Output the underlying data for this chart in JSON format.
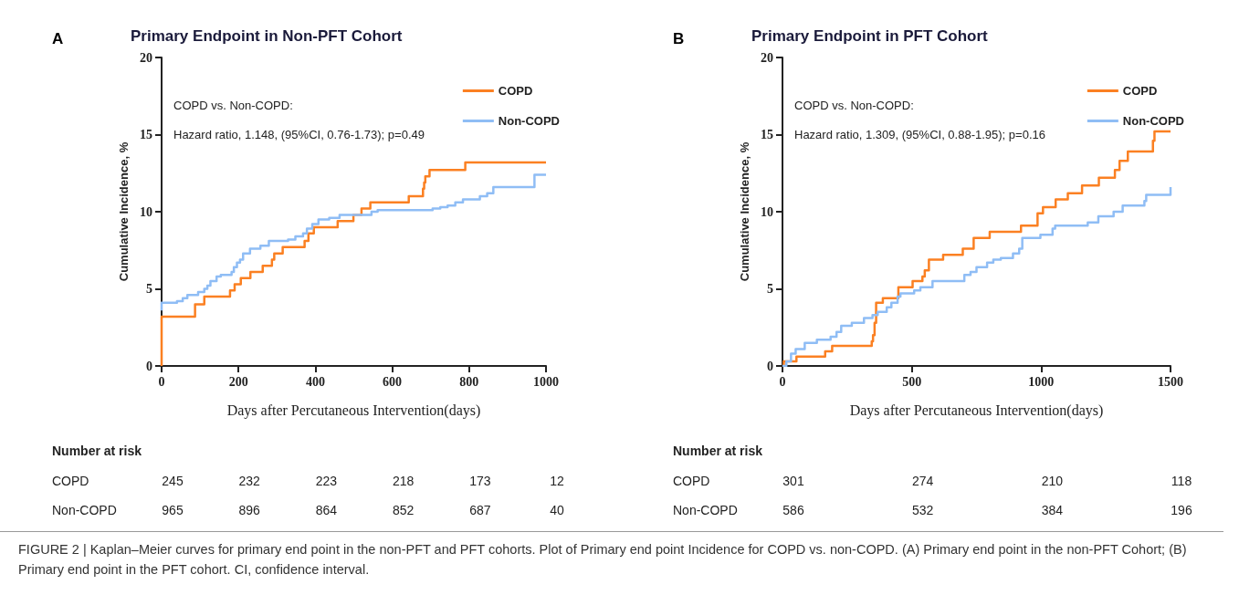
{
  "chart_data": [
    {
      "type": "step",
      "title": "Primary Endpoint in Non-PFT Cohort",
      "xlabel": "Days after Percutaneous Intervention(days)",
      "ylabel": "Cumulative Incidence, %",
      "xlim": [
        0,
        1000
      ],
      "xticks": [
        0,
        200,
        400,
        600,
        800,
        1000
      ],
      "ylim": [
        0,
        20
      ],
      "yticks": [
        0,
        5,
        10,
        15,
        20
      ],
      "legend": "top right",
      "marker": "none",
      "series": [
        {
          "name": "COPD",
          "color": "#fb8022",
          "x": [
            0,
            0,
            87,
            111,
            178,
            190,
            206,
            231,
            263,
            287,
            293,
            315,
            372,
            382,
            396,
            458,
            499,
            520,
            543,
            643,
            680,
            683,
            686,
            697,
            790,
            1000
          ],
          "values": [
            0,
            3.2,
            4.0,
            4.5,
            4.9,
            5.3,
            5.7,
            6.1,
            6.5,
            6.9,
            7.3,
            7.7,
            8.1,
            8.6,
            9.0,
            9.4,
            9.8,
            10.2,
            10.6,
            11.0,
            11.5,
            11.9,
            12.3,
            12.7,
            13.2,
            13.2
          ]
        },
        {
          "name": "Non-COPD",
          "color": "#8fbdf5",
          "x": [
            0,
            0,
            40,
            55,
            67,
            95,
            111,
            119,
            127,
            143,
            154,
            182,
            188,
            196,
            204,
            212,
            230,
            257,
            279,
            329,
            348,
            368,
            378,
            392,
            408,
            436,
            463,
            546,
            562,
            705,
            725,
            744,
            764,
            784,
            828,
            847,
            863,
            970,
            1000
          ],
          "values": [
            3.6,
            4.1,
            4.2,
            4.4,
            4.6,
            4.8,
            5.0,
            5.2,
            5.5,
            5.8,
            5.9,
            6.1,
            6.4,
            6.7,
            6.9,
            7.3,
            7.6,
            7.8,
            8.1,
            8.2,
            8.4,
            8.6,
            8.9,
            9.2,
            9.5,
            9.6,
            9.8,
            10.0,
            10.1,
            10.2,
            10.3,
            10.4,
            10.6,
            10.8,
            11.0,
            11.2,
            11.6,
            12.4,
            12.4
          ]
        }
      ],
      "annotations": [
        "A",
        "COPD vs. Non-COPD:",
        "Hazard ratio, 1.148, (95%CI, 0.76-1.73); p=0.49",
        "Number at risk",
        "COPD",
        "245",
        "232",
        "223",
        "218",
        "173",
        "12",
        "Non-COPD",
        "965",
        "896",
        "864",
        "852",
        "687",
        "40"
      ]
    },
    {
      "type": "step",
      "title": "Primary Endpoint in PFT Cohort",
      "xlabel": "Days after Percutaneous Intervention(days)",
      "ylabel": "Cumulative Incidence, %",
      "xlim": [
        0,
        1500
      ],
      "xticks": [
        0,
        500,
        1000,
        1500
      ],
      "ylim": [
        0,
        20
      ],
      "yticks": [
        0,
        5,
        10,
        15,
        20
      ],
      "legend": "top right",
      "marker": "none",
      "series": [
        {
          "name": "COPD",
          "color": "#fb8022",
          "x": [
            0,
            5,
            54,
            165,
            192,
            345,
            350,
            356,
            362,
            388,
            448,
            503,
            541,
            550,
            566,
            621,
            697,
            739,
            801,
            922,
            986,
            1007,
            1056,
            1103,
            1158,
            1223,
            1285,
            1303,
            1335,
            1432,
            1438,
            1500
          ],
          "values": [
            0,
            0.3,
            0.6,
            0.95,
            1.3,
            1.6,
            2.0,
            2.8,
            4.1,
            4.4,
            5.1,
            5.5,
            5.8,
            6.2,
            6.9,
            7.2,
            7.6,
            8.3,
            8.7,
            9.1,
            9.9,
            10.3,
            10.8,
            11.2,
            11.7,
            12.2,
            12.7,
            13.3,
            13.9,
            14.6,
            15.2,
            15.2
          ]
        },
        {
          "name": "Non-COPD",
          "color": "#8fbdf5",
          "x": [
            0,
            15,
            33,
            51,
            86,
            133,
            186,
            209,
            227,
            268,
            315,
            348,
            368,
            403,
            421,
            445,
            456,
            509,
            533,
            580,
            703,
            727,
            750,
            791,
            815,
            844,
            891,
            915,
            927,
            997,
            1044,
            1054,
            1180,
            1221,
            1280,
            1315,
            1399,
            1406,
            1500
          ],
          "values": [
            0,
            0.3,
            0.8,
            1.1,
            1.5,
            1.7,
            1.9,
            2.2,
            2.6,
            2.8,
            3.1,
            3.3,
            3.5,
            3.8,
            4.1,
            4.5,
            4.7,
            4.9,
            5.1,
            5.5,
            5.9,
            6.1,
            6.4,
            6.7,
            6.9,
            7.0,
            7.3,
            7.6,
            8.3,
            8.5,
            8.9,
            9.1,
            9.3,
            9.7,
            10.0,
            10.4,
            10.7,
            11.1,
            11.6
          ]
        }
      ],
      "annotations": [
        "B",
        "COPD vs. Non-COPD:",
        "Hazard ratio, 1.309, (95%CI, 0.88-1.95); p=0.16",
        "Number at risk",
        "COPD",
        "301",
        "274",
        "210",
        "118",
        "Non-COPD",
        "586",
        "532",
        "384",
        "196",
        "FIGURE 2 | Kaplan–Meier curves for primary end point in the non-PFT and PFT cohorts. Plot of Primary end point Incidence for COPD vs. non-COPD. (A) Primary end point in the non-PFT Cohort; (B) Primary end point in the PFT cohort. CI, confidence interval."
      ]
    }
  ]
}
